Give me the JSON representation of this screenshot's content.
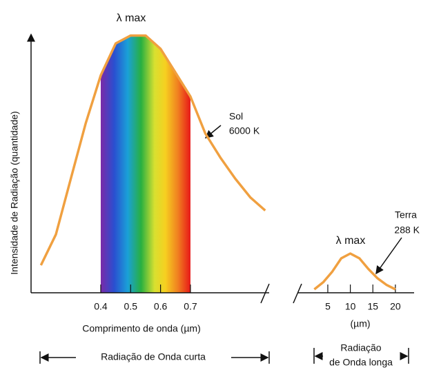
{
  "chart_data": [
    {
      "type": "line",
      "peak_label": "λ max",
      "ylabel": "Intensidade de Radiação (quantidade)",
      "xlabel": "Comprimento de onda (µm)",
      "band_label": "Radiação de Onda curta",
      "annotation": [
        "Sol",
        "6000 K"
      ],
      "x": [
        0.2,
        0.25,
        0.3,
        0.35,
        0.4,
        0.45,
        0.5,
        0.55,
        0.6,
        0.65,
        0.7,
        0.75,
        0.8,
        0.85,
        0.9,
        0.95
      ],
      "series": [
        {
          "color": "#f0a040",
          "values": [
            10.4,
            22,
            43,
            64,
            82,
            94,
            97,
            97,
            92,
            83,
            74,
            60,
            51,
            43,
            36,
            31
          ]
        }
      ],
      "xlim": [
        0.17,
        0.96
      ],
      "xticks": [
        0.4,
        0.5,
        0.6,
        0.7
      ],
      "ylim": [
        0,
        100
      ],
      "spectrum": true
    },
    {
      "type": "line",
      "peak_label": "λ max",
      "xlabel": "(µm)",
      "band_label": [
        "Radiação",
        "de Onda longa"
      ],
      "annotation": [
        "Terra",
        "288 K"
      ],
      "x": [
        2,
        4,
        6,
        8,
        10,
        12,
        14,
        16,
        18,
        20
      ],
      "series": [
        {
          "color": "#f0a040",
          "values": [
            1.3,
            4,
            8,
            13,
            14.8,
            13,
            9,
            5.5,
            3,
            1.3
          ]
        }
      ],
      "xlim": [
        -2.5,
        24
      ],
      "xticks": [
        5,
        10,
        15,
        20
      ],
      "ylim": [
        0,
        100
      ],
      "spectrum": false
    }
  ]
}
